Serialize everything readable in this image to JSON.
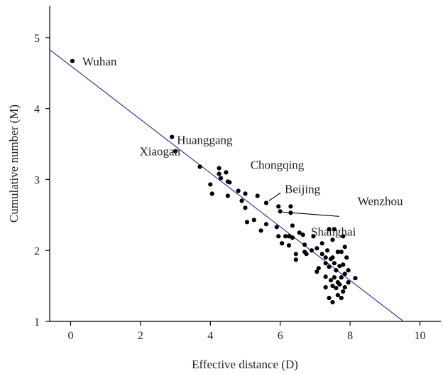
{
  "chart_data": {
    "type": "scatter",
    "xlabel": "Effective distance (D)",
    "ylabel": "Cumulative number (M)",
    "xlim": [
      -0.6,
      10.6
    ],
    "ylim": [
      1,
      5.45
    ],
    "x_ticks": [
      "0",
      "2",
      "4",
      "6",
      "8",
      "10"
    ],
    "x_tick_values": [
      0,
      2,
      4,
      6,
      8,
      10
    ],
    "y_ticks": [
      "1",
      "2",
      "3",
      "4",
      "5"
    ],
    "y_tick_values": [
      1,
      2,
      3,
      4,
      5
    ],
    "grid": false,
    "colors": {
      "points": "#000000",
      "fit_line": "#3a3aa8",
      "axis": "#000000"
    },
    "fit_line": {
      "x": [
        -0.6,
        9.53
      ],
      "y": [
        4.83,
        1.0
      ]
    },
    "annotations": [
      {
        "text": "Wuhan",
        "x": 0.05,
        "y": 4.67
      },
      {
        "text": "Huanggang",
        "x": 2.9,
        "y": 3.6
      },
      {
        "text": "Xiaogan",
        "x": 3.0,
        "y": 3.4
      },
      {
        "text": "Chongqing",
        "x": 5.35,
        "y": 2.77
      },
      {
        "text": "Beijing",
        "x": 5.6,
        "y": 2.67
      },
      {
        "text": "Wenzhou",
        "x": 6.0,
        "y": 2.55
      },
      {
        "text": "Shanghai",
        "x": 7.45,
        "y": 2.33
      }
    ],
    "points": [
      [
        0.05,
        4.67
      ],
      [
        2.9,
        3.6
      ],
      [
        3.0,
        3.4
      ],
      [
        3.7,
        3.18
      ],
      [
        4.0,
        2.93
      ],
      [
        4.05,
        2.8
      ],
      [
        4.25,
        3.16
      ],
      [
        4.25,
        3.08
      ],
      [
        4.3,
        3.02
      ],
      [
        4.45,
        3.1
      ],
      [
        4.5,
        2.97
      ],
      [
        4.5,
        2.77
      ],
      [
        4.55,
        2.96
      ],
      [
        4.8,
        2.84
      ],
      [
        4.9,
        2.7
      ],
      [
        5.0,
        2.8
      ],
      [
        5.0,
        2.6
      ],
      [
        5.05,
        2.4
      ],
      [
        5.25,
        2.43
      ],
      [
        5.35,
        2.77
      ],
      [
        5.45,
        2.28
      ],
      [
        5.6,
        2.67
      ],
      [
        5.6,
        2.37
      ],
      [
        5.9,
        2.33
      ],
      [
        5.95,
        2.62
      ],
      [
        5.95,
        2.2
      ],
      [
        6.0,
        2.55
      ],
      [
        6.05,
        2.1
      ],
      [
        6.15,
        2.2
      ],
      [
        6.25,
        2.2
      ],
      [
        6.25,
        2.07
      ],
      [
        6.3,
        2.62
      ],
      [
        6.3,
        2.53
      ],
      [
        6.35,
        2.35
      ],
      [
        6.35,
        2.18
      ],
      [
        6.45,
        1.95
      ],
      [
        6.45,
        1.87
      ],
      [
        6.55,
        2.25
      ],
      [
        6.65,
        2.22
      ],
      [
        6.7,
        2.08
      ],
      [
        6.7,
        1.98
      ],
      [
        6.75,
        1.95
      ],
      [
        6.9,
        2.0
      ],
      [
        6.95,
        2.2
      ],
      [
        7.05,
        2.03
      ],
      [
        7.05,
        1.7
      ],
      [
        7.1,
        1.75
      ],
      [
        7.2,
        2.1
      ],
      [
        7.2,
        1.95
      ],
      [
        7.3,
        1.9
      ],
      [
        7.3,
        1.82
      ],
      [
        7.3,
        1.63
      ],
      [
        7.3,
        1.48
      ],
      [
        7.35,
        2.0
      ],
      [
        7.4,
        2.3
      ],
      [
        7.4,
        1.77
      ],
      [
        7.45,
        1.88
      ],
      [
        7.45,
        1.58
      ],
      [
        7.5,
        2.15
      ],
      [
        7.5,
        1.9
      ],
      [
        7.5,
        1.5
      ],
      [
        7.5,
        1.27
      ],
      [
        7.55,
        2.3
      ],
      [
        7.55,
        1.82
      ],
      [
        7.55,
        1.62
      ],
      [
        7.6,
        1.72
      ],
      [
        7.6,
        1.47
      ],
      [
        7.65,
        1.98
      ],
      [
        7.65,
        1.55
      ],
      [
        7.65,
        1.37
      ],
      [
        7.7,
        1.78
      ],
      [
        7.7,
        1.52
      ],
      [
        7.75,
        1.98
      ],
      [
        7.75,
        1.62
      ],
      [
        7.8,
        2.2
      ],
      [
        7.8,
        1.8
      ],
      [
        7.8,
        1.42
      ],
      [
        7.85,
        2.05
      ],
      [
        7.85,
        1.67
      ],
      [
        7.85,
        1.48
      ],
      [
        7.9,
        1.9
      ],
      [
        7.95,
        1.72
      ],
      [
        7.95,
        1.55
      ],
      [
        8.15,
        1.61
      ],
      [
        7.4,
        1.33
      ],
      [
        7.75,
        1.33
      ]
    ]
  }
}
